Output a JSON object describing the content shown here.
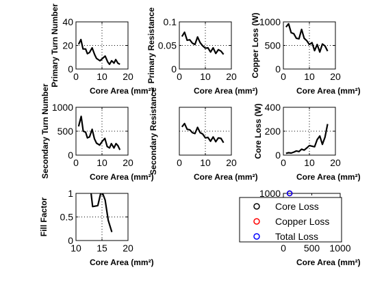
{
  "chart_data": [
    {
      "type": "line",
      "xlabel": "Core Area (mm²)",
      "ylabel": "Primary Turn Number",
      "xlim": [
        0,
        20
      ],
      "ylim": [
        0,
        40
      ],
      "xticks": [
        0,
        10,
        20
      ],
      "yticks": [
        0,
        20,
        40
      ],
      "xtick_labels": [
        "0",
        "10",
        "20"
      ],
      "ytick_labels": [
        "0",
        "20",
        "40"
      ],
      "grid_v": [
        10
      ],
      "grid_h": [
        20
      ],
      "x": [
        1.0,
        1.9,
        2.7,
        3.7,
        4.4,
        5.2,
        6.2,
        7.2,
        7.9,
        9.2,
        10.2,
        11.2,
        12.2,
        12.9,
        13.7,
        14.6,
        15.3,
        16.1,
        16.9
      ],
      "y": [
        21,
        25,
        17,
        17,
        13,
        14,
        18,
        12,
        9,
        7,
        9,
        11,
        6,
        4,
        7,
        5,
        8,
        5,
        4
      ]
    },
    {
      "type": "line",
      "xlabel": "Core Area (mm²)",
      "ylabel": "Primary Resistance",
      "xlim": [
        0,
        20
      ],
      "ylim": [
        0,
        0.1
      ],
      "xticks": [
        0,
        10,
        20
      ],
      "yticks": [
        0,
        0.05,
        0.1
      ],
      "xtick_labels": [
        "0",
        "10",
        "20"
      ],
      "ytick_labels": [
        "0",
        "0.05",
        "0.1"
      ],
      "grid_v": [
        10
      ],
      "grid_h": [
        0.05
      ],
      "x": [
        1.0,
        2.0,
        3.0,
        4.0,
        5.0,
        6.0,
        7.0,
        8.0,
        9.0,
        10.0,
        11.0,
        12.0,
        13.0,
        14.0,
        15.0,
        16.0,
        17.0
      ],
      "y": [
        0.069,
        0.078,
        0.061,
        0.062,
        0.055,
        0.052,
        0.068,
        0.056,
        0.049,
        0.044,
        0.045,
        0.036,
        0.045,
        0.033,
        0.041,
        0.038,
        0.031
      ]
    },
    {
      "type": "line",
      "xlabel": "Core Area (mm²)",
      "ylabel": "Copper Loss (W)",
      "xlim": [
        0,
        20
      ],
      "ylim": [
        0,
        1000
      ],
      "xticks": [
        0,
        10,
        20
      ],
      "yticks": [
        0,
        500,
        1000
      ],
      "xtick_labels": [
        "0",
        "10",
        "20"
      ],
      "ytick_labels": [
        "0",
        "500",
        "1000"
      ],
      "grid_v": [
        10
      ],
      "grid_h": [
        500
      ],
      "x": [
        1.0,
        2.0,
        3.0,
        4.0,
        5.0,
        6.0,
        7.0,
        8.0,
        9.0,
        10.0,
        11.0,
        12.0,
        13.0,
        14.0,
        15.0,
        16.0,
        17.0
      ],
      "y": [
        890,
        960,
        770,
        750,
        650,
        640,
        840,
        650,
        600,
        520,
        560,
        390,
        520,
        360,
        530,
        490,
        380
      ]
    },
    {
      "type": "line",
      "xlabel": "Core Area (mm²)",
      "ylabel": "Secondary Turn Number",
      "xlim": [
        0,
        20
      ],
      "ylim": [
        0,
        1000
      ],
      "xticks": [
        0,
        10,
        20
      ],
      "yticks": [
        0,
        500,
        1000
      ],
      "xtick_labels": [
        "0",
        "10",
        "20"
      ],
      "ytick_labels": [
        "0",
        "500",
        "1000"
      ],
      "grid_v": [
        10
      ],
      "grid_h": [
        500
      ],
      "x": [
        1.0,
        2.0,
        2.8,
        3.7,
        4.4,
        5.2,
        6.2,
        7.1,
        7.9,
        9.1,
        10.1,
        11.1,
        12.0,
        12.9,
        13.6,
        14.6,
        15.4,
        16.1,
        16.9
      ],
      "y": [
        600,
        810,
        500,
        480,
        360,
        380,
        540,
        340,
        250,
        210,
        290,
        350,
        180,
        150,
        240,
        150,
        240,
        200,
        110
      ]
    },
    {
      "type": "line",
      "xlabel": "Core Area (mm²)",
      "ylabel": "Secondary Resistance",
      "xlim": [
        0,
        20
      ],
      "ylim": [
        0,
        0.1
      ],
      "xticks": [
        0,
        10,
        20
      ],
      "yticks": [],
      "xtick_labels": [
        "0",
        "10",
        "20"
      ],
      "ytick_labels": [],
      "grid_v": [
        10
      ],
      "grid_h": [
        0.05
      ],
      "x": [
        1.0,
        2.0,
        3.0,
        4.0,
        5.0,
        6.0,
        7.0,
        8.0,
        9.0,
        10.0,
        11.0,
        12.0,
        13.0,
        14.0,
        15.0,
        16.0,
        17.0
      ],
      "y": [
        0.059,
        0.066,
        0.054,
        0.053,
        0.047,
        0.045,
        0.058,
        0.047,
        0.044,
        0.036,
        0.037,
        0.029,
        0.038,
        0.028,
        0.036,
        0.035,
        0.026
      ]
    },
    {
      "type": "line",
      "xlabel": "Core Area (mm²)",
      "ylabel": "Core Loss (W)",
      "xlim": [
        0,
        20
      ],
      "ylim": [
        0,
        400
      ],
      "xticks": [
        0,
        10,
        20
      ],
      "yticks": [
        0,
        200,
        400
      ],
      "xtick_labels": [
        "0",
        "10",
        "20"
      ],
      "ytick_labels": [
        "0",
        "200",
        "400"
      ],
      "grid_v": [
        10
      ],
      "grid_h": [
        200
      ],
      "x": [
        1.0,
        2.0,
        3.0,
        4.0,
        5.0,
        6.0,
        7.0,
        8.0,
        9.0,
        10.0,
        11.0,
        12.0,
        13.0,
        14.0,
        15.0,
        16.0,
        17.0
      ],
      "y": [
        15,
        20,
        17,
        25,
        35,
        30,
        50,
        42,
        60,
        80,
        75,
        70,
        130,
        160,
        90,
        150,
        260
      ]
    },
    {
      "type": "line",
      "xlabel": "Core Area (mm²)",
      "ylabel": "Fill Factor",
      "xlim": [
        10,
        20
      ],
      "ylim": [
        0,
        1
      ],
      "xticks": [
        10,
        15,
        20
      ],
      "yticks": [
        0,
        0.5,
        1
      ],
      "xtick_labels": [
        "10",
        "15",
        "20"
      ],
      "ytick_labels": [
        "0",
        "0.5",
        "1"
      ],
      "grid_v": [
        15
      ],
      "grid_h": [
        0.5
      ],
      "x": [
        12.7,
        13.2,
        14.2,
        14.9,
        15.6,
        16.2,
        16.9
      ],
      "y": [
        1.2,
        0.72,
        0.74,
        1.07,
        0.86,
        0.43,
        0.18
      ]
    },
    {
      "type": "scatter",
      "xlabel": "Core Area (mm²)",
      "ylabel": "",
      "xlim": [
        0,
        1000
      ],
      "ylim": [
        0,
        1000
      ],
      "xticks": [
        0,
        500,
        1000
      ],
      "yticks": [
        1000
      ],
      "xtick_labels": [
        "0",
        "500",
        "1000"
      ],
      "ytick_labels": [
        "1000"
      ],
      "legend_position": "center-left",
      "series": [
        {
          "name": "Core Loss",
          "color": "#000000",
          "marker": "circle",
          "x": [
            110
          ],
          "y": [
            1000
          ]
        },
        {
          "name": "Copper Loss",
          "color": "#ff0000",
          "marker": "circle",
          "x": [
            110
          ],
          "y": [
            1000
          ]
        },
        {
          "name": "Total Loss",
          "color": "#0000ff",
          "marker": "circle",
          "x": [
            110
          ],
          "y": [
            1000
          ]
        }
      ]
    }
  ]
}
